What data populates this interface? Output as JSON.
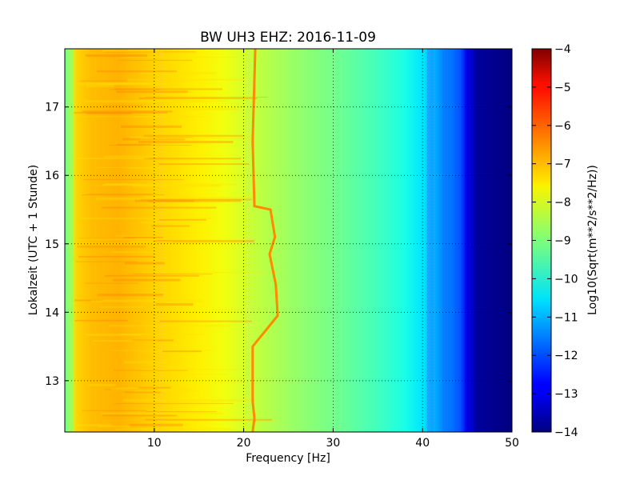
{
  "chart_data": {
    "type": "heatmap",
    "title": "BW UH3 EHZ: 2016-11-09",
    "xlabel": "Frequency [Hz]",
    "ylabel": "Lokalzeit (UTC + 1 Stunde)",
    "xlim": [
      0,
      50
    ],
    "ylim": [
      17.85,
      12.25
    ],
    "x_ticks": [
      10,
      20,
      30,
      40,
      50
    ],
    "x_tick_labels": [
      "10",
      "20",
      "30",
      "40",
      "50"
    ],
    "y_ticks": [
      13,
      14,
      15,
      16,
      17
    ],
    "y_tick_labels": [
      "13",
      "14",
      "15",
      "16",
      "17"
    ],
    "grid": true,
    "colormap": "jet",
    "colorbar": {
      "label": "Log10(Sqrt(m**2/s**2/Hz))",
      "range": [
        -14,
        -4
      ],
      "ticks": [
        -4,
        -5,
        -6,
        -7,
        -8,
        -9,
        -10,
        -11,
        -12,
        -13,
        -14
      ],
      "tick_labels": [
        "−4",
        "−5",
        "−6",
        "−7",
        "−8",
        "−9",
        "−10",
        "−11",
        "−12",
        "−13",
        "−14"
      ]
    },
    "spectrum_profile": {
      "frequency_hz": [
        0,
        0.5,
        1.5,
        3,
        6,
        10,
        15,
        18,
        21,
        25,
        30,
        35,
        38,
        40,
        42,
        44,
        45,
        46,
        50
      ],
      "log10_amplitude": [
        -9.5,
        -8.3,
        -7.3,
        -7.1,
        -7.0,
        -7.3,
        -7.6,
        -7.9,
        -8.3,
        -8.7,
        -9.1,
        -9.6,
        -10.0,
        -10.5,
        -11.3,
        -11.8,
        -12.7,
        -13.7,
        -14.0
      ]
    },
    "narrowband_line": {
      "log10_amplitude": -6.6,
      "segments": [
        {
          "time_h": 12.25,
          "frequency_hz": 21.0
        },
        {
          "time_h": 12.45,
          "frequency_hz": 21.2
        },
        {
          "time_h": 12.7,
          "frequency_hz": 21.0
        },
        {
          "time_h": 13.5,
          "frequency_hz": 21.0
        },
        {
          "time_h": 13.95,
          "frequency_hz": 23.8
        },
        {
          "time_h": 14.4,
          "frequency_hz": 23.6
        },
        {
          "time_h": 14.85,
          "frequency_hz": 22.9
        },
        {
          "time_h": 15.1,
          "frequency_hz": 23.5
        },
        {
          "time_h": 15.5,
          "frequency_hz": 23.0
        },
        {
          "time_h": 15.55,
          "frequency_hz": 21.2
        },
        {
          "time_h": 16.5,
          "frequency_hz": 21.0
        },
        {
          "time_h": 17.85,
          "frequency_hz": 21.3
        }
      ]
    }
  }
}
